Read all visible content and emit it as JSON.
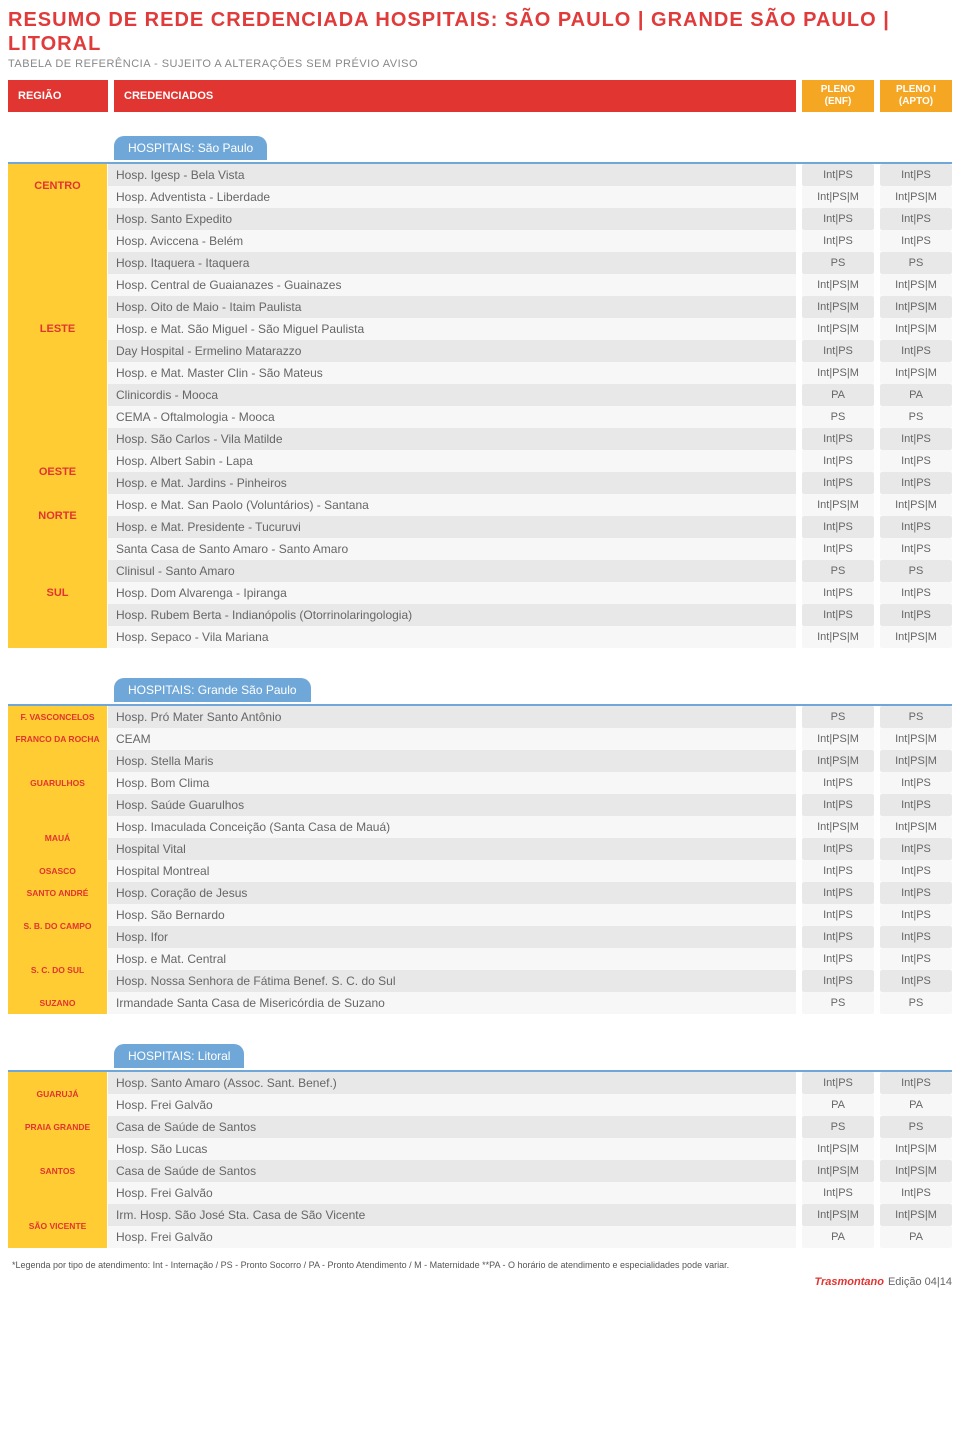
{
  "colors": {
    "accent_red": "#e03531",
    "accent_orange": "#f5a623",
    "region_bg": "#ffcc33",
    "section_blue": "#6fa8d8",
    "row_odd": "#e8e8e8",
    "row_even": "#f7f7f7",
    "text_gray": "#666"
  },
  "title": "RESUMO DE REDE CREDENCIADA HOSPITAIS: SÃO PAULO | GRANDE SÃO PAULO | LITORAL",
  "subtitle": "TABELA DE REFERÊNCIA - SUJEITO A ALTERAÇÕES SEM PRÉVIO AVISO",
  "header": {
    "regiao": "REGIÃO",
    "credenciados": "CREDENCIADOS",
    "plan1_line1": "PLENO",
    "plan1_line2": "(ENF)",
    "plan2_line1": "PLENO I",
    "plan2_line2": "(APTO)"
  },
  "sections": [
    {
      "title": "HOSPITAIS: São Paulo",
      "regions": [
        {
          "name": "CENTRO",
          "small": false,
          "rows": [
            {
              "name": "Hosp. Igesp - Bela Vista",
              "v1": "Int|PS",
              "v2": "Int|PS"
            },
            {
              "name": "Hosp. Adventista - Liberdade",
              "v1": "Int|PS|M",
              "v2": "Int|PS|M"
            }
          ]
        },
        {
          "name": "LESTE",
          "small": false,
          "rows": [
            {
              "name": "Hosp. Santo Expedito",
              "v1": "Int|PS",
              "v2": "Int|PS"
            },
            {
              "name": "Hosp. Aviccena - Belém",
              "v1": "Int|PS",
              "v2": "Int|PS"
            },
            {
              "name": "Hosp. Itaquera - Itaquera",
              "v1": "PS",
              "v2": "PS"
            },
            {
              "name": "Hosp. Central de Guaianazes - Guainazes",
              "v1": "Int|PS|M",
              "v2": "Int|PS|M"
            },
            {
              "name": "Hosp. Oito de Maio - Itaim Paulista",
              "v1": "Int|PS|M",
              "v2": "Int|PS|M"
            },
            {
              "name": "Hosp. e Mat. São Miguel - São Miguel Paulista",
              "v1": "Int|PS|M",
              "v2": "Int|PS|M"
            },
            {
              "name": "Day Hospital - Ermelino Matarazzo",
              "v1": "Int|PS",
              "v2": "Int|PS"
            },
            {
              "name": "Hosp. e Mat. Master Clin - São Mateus",
              "v1": "Int|PS|M",
              "v2": "Int|PS|M"
            },
            {
              "name": "Clinicordis - Mooca",
              "v1": "PA",
              "v2": "PA"
            },
            {
              "name": "CEMA - Oftalmologia - Mooca",
              "v1": "PS",
              "v2": "PS"
            },
            {
              "name": "Hosp. São Carlos - Vila Matilde",
              "v1": "Int|PS",
              "v2": "Int|PS"
            }
          ]
        },
        {
          "name": "OESTE",
          "small": false,
          "rows": [
            {
              "name": "Hosp. Albert Sabin - Lapa",
              "v1": "Int|PS",
              "v2": "Int|PS"
            },
            {
              "name": "Hosp. e Mat. Jardins - Pinheiros",
              "v1": "Int|PS",
              "v2": "Int|PS"
            }
          ]
        },
        {
          "name": "NORTE",
          "small": false,
          "rows": [
            {
              "name": "Hosp. e Mat. San Paolo (Voluntários) - Santana",
              "v1": "Int|PS|M",
              "v2": "Int|PS|M"
            },
            {
              "name": "Hosp. e Mat. Presidente - Tucuruvi",
              "v1": "Int|PS",
              "v2": "Int|PS"
            }
          ]
        },
        {
          "name": "SUL",
          "small": false,
          "rows": [
            {
              "name": "Santa Casa de Santo Amaro - Santo Amaro",
              "v1": "Int|PS",
              "v2": "Int|PS"
            },
            {
              "name": "Clinisul - Santo Amaro",
              "v1": "PS",
              "v2": "PS"
            },
            {
              "name": "Hosp. Dom Alvarenga - Ipiranga",
              "v1": "Int|PS",
              "v2": "Int|PS"
            },
            {
              "name": "Hosp. Rubem Berta - Indianópolis (Otorrinolaringologia)",
              "v1": "Int|PS",
              "v2": "Int|PS"
            },
            {
              "name": "Hosp. Sepaco - Vila Mariana",
              "v1": "Int|PS|M",
              "v2": "Int|PS|M"
            }
          ]
        }
      ]
    },
    {
      "title": "HOSPITAIS: Grande São Paulo",
      "regions": [
        {
          "name": "F. VASCONCELOS",
          "small": true,
          "rows": [
            {
              "name": "Hosp. Pró Mater Santo Antônio",
              "v1": "PS",
              "v2": "PS"
            }
          ]
        },
        {
          "name": "FRANCO DA ROCHA",
          "small": true,
          "rows": [
            {
              "name": "CEAM",
              "v1": "Int|PS|M",
              "v2": "Int|PS|M"
            }
          ]
        },
        {
          "name": "GUARULHOS",
          "small": true,
          "rows": [
            {
              "name": "Hosp. Stella Maris",
              "v1": "Int|PS|M",
              "v2": "Int|PS|M"
            },
            {
              "name": "Hosp. Bom Clima",
              "v1": "Int|PS",
              "v2": "Int|PS"
            },
            {
              "name": "Hosp. Saúde Guarulhos",
              "v1": "Int|PS",
              "v2": "Int|PS"
            }
          ]
        },
        {
          "name": "MAUÁ",
          "small": true,
          "rows": [
            {
              "name": "Hosp. Imaculada Conceição (Santa Casa de Mauá)",
              "v1": "Int|PS|M",
              "v2": "Int|PS|M"
            },
            {
              "name": "Hospital Vital",
              "v1": "Int|PS",
              "v2": "Int|PS"
            }
          ]
        },
        {
          "name": "OSASCO",
          "small": true,
          "rows": [
            {
              "name": "Hospital Montreal",
              "v1": "Int|PS",
              "v2": "Int|PS"
            }
          ]
        },
        {
          "name": "SANTO ANDRÉ",
          "small": true,
          "rows": [
            {
              "name": "Hosp. Coração de Jesus",
              "v1": "Int|PS",
              "v2": "Int|PS"
            }
          ]
        },
        {
          "name": "S. B. DO CAMPO",
          "small": true,
          "rows": [
            {
              "name": "Hosp. São Bernardo",
              "v1": "Int|PS",
              "v2": "Int|PS"
            },
            {
              "name": "Hosp. Ifor",
              "v1": "Int|PS",
              "v2": "Int|PS"
            }
          ]
        },
        {
          "name": "S. C. DO SUL",
          "small": true,
          "rows": [
            {
              "name": "Hosp. e Mat. Central",
              "v1": "Int|PS",
              "v2": "Int|PS"
            },
            {
              "name": "Hosp. Nossa Senhora de Fátima Benef. S. C. do Sul",
              "v1": "Int|PS",
              "v2": "Int|PS"
            }
          ]
        },
        {
          "name": "SUZANO",
          "small": true,
          "rows": [
            {
              "name": "Irmandade Santa Casa de Misericórdia de Suzano",
              "v1": "PS",
              "v2": "PS"
            }
          ]
        }
      ]
    },
    {
      "title": "HOSPITAIS: Litoral",
      "regions": [
        {
          "name": "GUARUJÁ",
          "small": true,
          "rows": [
            {
              "name": "Hosp. Santo Amaro (Assoc. Sant. Benef.)",
              "v1": "Int|PS",
              "v2": "Int|PS"
            },
            {
              "name": "Hosp. Frei Galvão",
              "v1": "PA",
              "v2": "PA"
            }
          ]
        },
        {
          "name": "PRAIA GRANDE",
          "small": true,
          "rows": [
            {
              "name": "Casa de Saúde de Santos",
              "v1": "PS",
              "v2": "PS"
            }
          ]
        },
        {
          "name": "SANTOS",
          "small": true,
          "rows": [
            {
              "name": "Hosp. São Lucas",
              "v1": "Int|PS|M",
              "v2": "Int|PS|M"
            },
            {
              "name": "Casa de Saúde de Santos",
              "v1": "Int|PS|M",
              "v2": "Int|PS|M"
            },
            {
              "name": "Hosp. Frei Galvão",
              "v1": "Int|PS",
              "v2": "Int|PS"
            }
          ]
        },
        {
          "name": "SÃO VICENTE",
          "small": true,
          "rows": [
            {
              "name": "Irm. Hosp. São José Sta. Casa de São Vicente",
              "v1": "Int|PS|M",
              "v2": "Int|PS|M"
            },
            {
              "name": "Hosp. Frei Galvão",
              "v1": "PA",
              "v2": "PA"
            }
          ]
        }
      ]
    }
  ],
  "legend": "*Legenda por tipo de atendimento: Int - Internação / PS - Pronto Socorro / PA - Pronto Atendimento /  M - Maternidade **PA - O horário de atendimento e especialidades pode variar.",
  "footer": {
    "brand": "Trasmontano",
    "edition": "Edição 04|14"
  }
}
